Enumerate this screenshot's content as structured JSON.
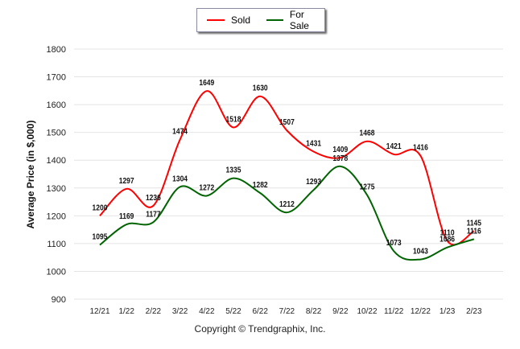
{
  "chart_data": {
    "type": "line",
    "title": "",
    "xlabel": "",
    "ylabel": "Average Price (in $,000)",
    "ylim": [
      900,
      1800
    ],
    "yticks": [
      900,
      1000,
      1100,
      1200,
      1300,
      1400,
      1500,
      1600,
      1700,
      1800
    ],
    "grid": true,
    "legend_position": "top-center",
    "categories": [
      "12/21",
      "1/22",
      "2/22",
      "3/22",
      "4/22",
      "5/22",
      "6/22",
      "7/22",
      "8/22",
      "9/22",
      "10/22",
      "11/22",
      "12/22",
      "1/23",
      "2/23"
    ],
    "series": [
      {
        "name": "Sold",
        "color": "#ff0000",
        "values": [
          1200,
          1297,
          1236,
          1474,
          1649,
          1518,
          1630,
          1507,
          1431,
          1409,
          1468,
          1421,
          1416,
          1110,
          1145
        ]
      },
      {
        "name": "For Sale",
        "color": "#006400",
        "values": [
          1095,
          1169,
          1177,
          1304,
          1272,
          1335,
          1282,
          1212,
          1293,
          1378,
          1275,
          1073,
          1043,
          1086,
          1116
        ]
      }
    ]
  },
  "footer": {
    "copyright": "Copyright © Trendgraphix, Inc."
  }
}
